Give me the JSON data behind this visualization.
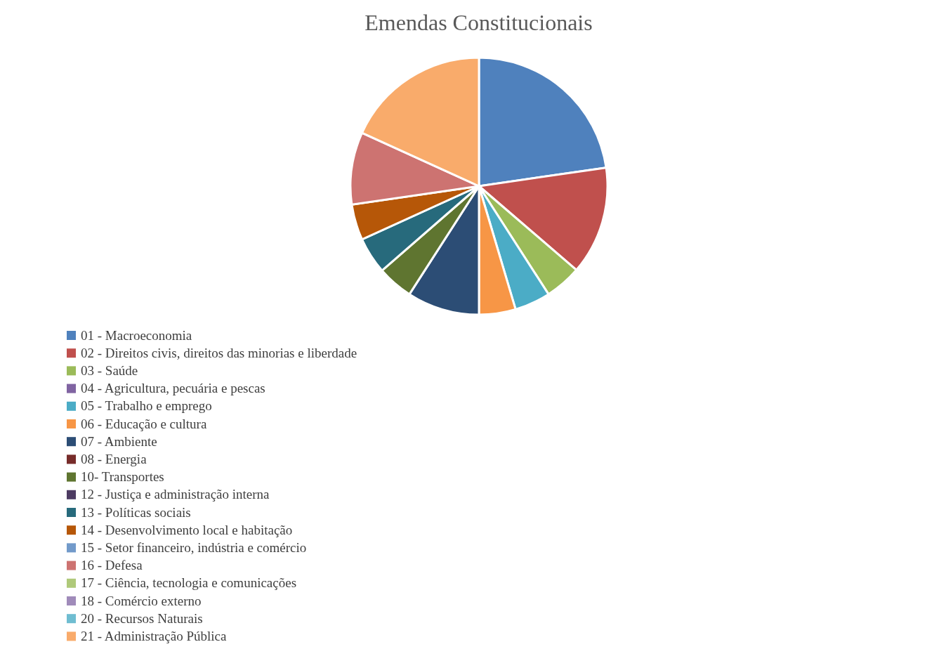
{
  "chart_data": {
    "type": "pie",
    "title": "Emendas Constitucionais",
    "categories": [
      "01 - Macroeconomia",
      "02 - Direitos civis, direitos das minorias e liberdade",
      "03 - Saúde",
      "04 - Agricultura, pecuária e pescas",
      "05 - Trabalho e emprego",
      "06 - Educação e cultura",
      "07 -  Ambiente",
      "08 - Energia",
      "10- Transportes",
      "12 - Justiça e administração interna",
      "13 - Políticas sociais",
      "14 - Desenvolvimento local e habitação",
      "15 - Setor financeiro, indústria e comércio",
      "16 - Defesa",
      "17 - Ciência, tecnologia e comunicações",
      "18 - Comércio externo",
      "20 - Recursos Naturais",
      "21 - Administração Pública"
    ],
    "values": [
      22.7,
      13.6,
      4.6,
      0,
      4.5,
      4.6,
      9.1,
      0,
      4.5,
      0,
      4.6,
      4.5,
      0,
      9.1,
      0,
      0,
      0,
      18.2
    ],
    "colors": [
      "#4f81bd",
      "#c0504d",
      "#9bbb59",
      "#8064a2",
      "#4bacc6",
      "#f79646",
      "#2c4d75",
      "#772c2a",
      "#5f7530",
      "#4d3b62",
      "#276a7c",
      "#b65708",
      "#729aca",
      "#cd7371",
      "#afc97a",
      "#a08bba",
      "#6fbdd1",
      "#f9ab6b"
    ],
    "legend": "bottom left"
  }
}
